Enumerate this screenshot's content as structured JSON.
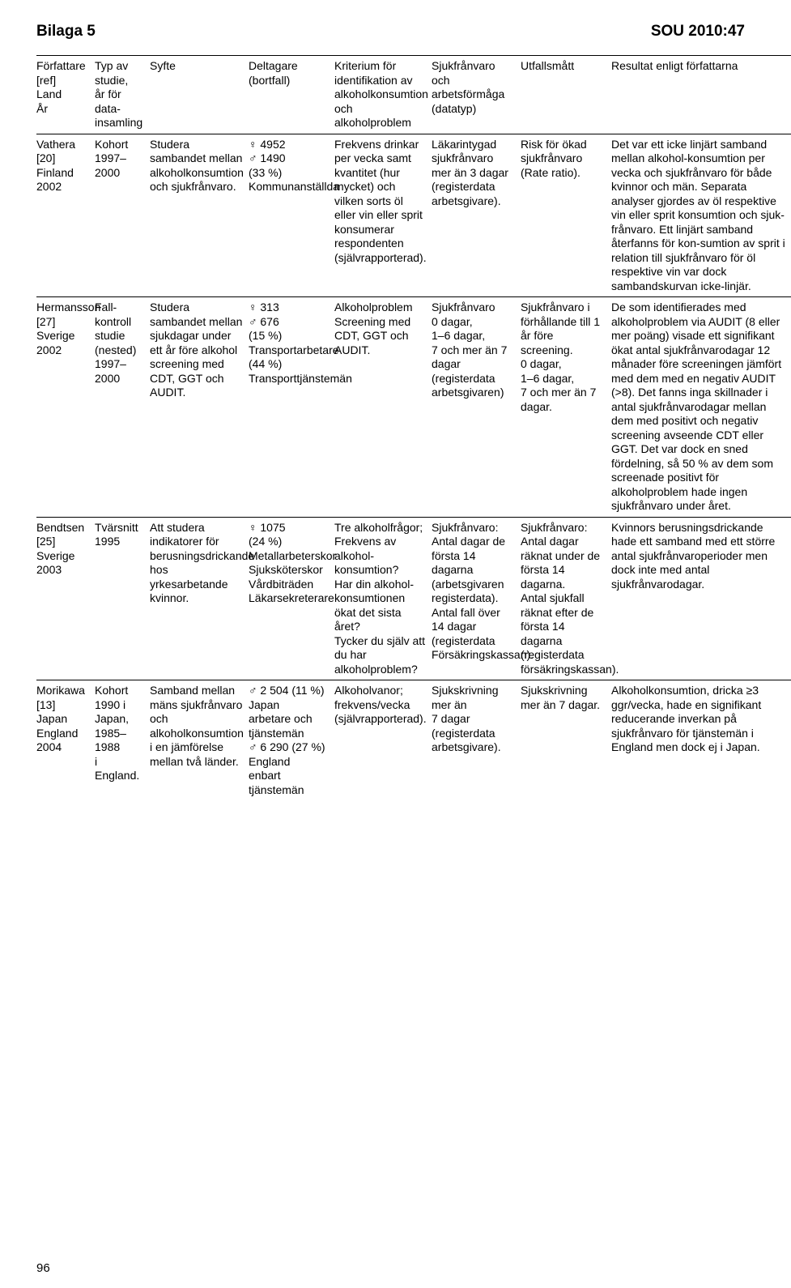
{
  "header": {
    "left": "Bilaga 5",
    "right": "SOU 2010:47"
  },
  "pageNumber": "96",
  "columns": {
    "c0": "Författare\n[ref]\nLand\nÅr",
    "c1": "Typ av\nstudie,\når för data-\ninsamling",
    "c2": "Syfte",
    "c3": "Deltagare\n(bortfall)",
    "c4": "Kriterium för\nidentifikation av\nalkoholkonsumtion och\nalkoholproblem",
    "c5": "Sjukfrånvaro och\narbetsförmåga\n(datatyp)",
    "c6": "Utfallsmått",
    "c7": "Resultat enligt författarna"
  },
  "colWidths": [
    "72",
    "68",
    "122",
    "106",
    "120",
    "110",
    "112",
    "222"
  ],
  "rows": [
    {
      "c0": "Vathera\n[20]\nFinland\n2002",
      "c1": "Kohort\n1997–2000",
      "c2": "Studera sambandet mellan alkoholkonsumtion och sjukfrånvaro.",
      "c3": "♀ 4952\n♂ 1490\n(33 %)\nKommunanställda",
      "c4": "Frekvens drinkar per vecka samt kvantitet (hur mycket) och vilken sorts öl eller vin eller sprit konsumerar respondenten (självrapporterad).",
      "c5": "Läkarintygad sjukfrånvaro mer än 3 dagar (registerdata arbetsgivare).",
      "c6": "Risk för ökad sjukfrånvaro (Rate ratio).",
      "c7": "Det var ett icke linjärt samband mellan alkohol-konsumtion per vecka och sjukfrånvaro för både kvinnor och män. Separata analyser gjordes av öl respektive vin eller sprit konsumtion och sjuk-frånvaro. Ett linjärt samband återfanns för kon-sumtion av sprit i relation till sjukfrånvaro för öl respektive vin var dock sambandskurvan icke-linjär."
    },
    {
      "c0": "Hermansson\n[27]\nSverige\n2002",
      "c1": "Fall-kontroll\nstudie\n(nested)\n1997–2000",
      "c2": "Studera sambandet mellan sjukdagar under ett år före alkohol screening med CDT, GGT och AUDIT.",
      "c3": "♀ 313\n♂ 676\n(15 %)\nTransportarbetare\n(44 %)\nTransporttjänstemän",
      "c4": "Alkoholproblem\nScreening med\nCDT, GGT och AUDIT.",
      "c5": "Sjukfrånvaro\n0 dagar,\n1–6 dagar,\n7 och mer än 7 dagar\n(registerdata arbetsgivaren)",
      "c6": "Sjukfrånvaro i förhållande till 1 år före screening.\n0 dagar,\n1–6 dagar,\n7 och mer än 7 dagar.",
      "c7": "De som identifierades med alkoholproblem via AUDIT (8 eller mer poäng) visade ett signifikant ökat antal sjukfrånvarodagar 12 månader före screeningen jämfört med dem med en negativ AUDIT (>8). Det fanns inga skillnader i antal sjukfrånvarodagar mellan dem med positivt och negativ screening avseende CDT eller GGT. Det var dock en sned fördelning, så 50 % av dem som screenade positivt för alkoholproblem hade ingen sjukfrånvaro under året."
    },
    {
      "c0": "Bendtsen\n[25]\nSverige\n2003",
      "c1": "Tvärsnitt\n1995",
      "c2": "Att studera indikatorer för berusningsdrickande hos yrkesarbetande kvinnor.",
      "c3": "♀ 1075\n(24 %)\nMetallarbeterskor\nSjuksköterskor\nVårdbiträden\nLäkarsekreterare",
      "c4": "Tre alkoholfrågor;\nFrekvens av alkohol-konsumtion?\nHar din alkohol-konsumtionen ökat det sista året?\nTycker du själv att du har alkoholproblem?",
      "c5": "Sjukfrånvaro: Antal dagar de första 14 dagarna (arbetsgivaren registerdata). Antal fall över 14 dagar (registerdata Försäkringskassan).",
      "c6": "Sjukfrånvaro: Antal dagar räknat under de första 14 dagarna.\nAntal sjukfall räknat efter de första 14 dagarna (registerdata försäkringskassan).",
      "c7": "Kvinnors berusningsdrickande hade ett samband med ett större antal sjukfrånvaroperioder men dock inte med antal sjukfrånvarodagar."
    },
    {
      "c0": "Morikawa\n[13]\nJapan\nEngland\n2004",
      "c1": "Kohort\n1990 i\nJapan,\n1985–1988\ni England.",
      "c2": "Samband mellan mäns sjukfrånvaro och alkoholkonsumtion i en jämförelse mellan två länder.",
      "c3": "♂ 2 504 (11 %)\nJapan\narbetare och\ntjänstemän\n♂ 6 290 (27 %)\nEngland\nenbart tjänstemän",
      "c4": "Alkoholvanor;\nfrekvens/vecka\n(självrapporterad).",
      "c5": "Sjukskrivning mer än\n7 dagar (registerdata arbetsgivare).",
      "c6": "Sjukskrivning mer än 7 dagar.",
      "c7": "Alkoholkonsumtion, dricka ≥3 ggr/vecka, hade en signifikant reducerande inverkan på sjukfrånvaro för tjänstemän i England men dock ej i Japan."
    }
  ]
}
